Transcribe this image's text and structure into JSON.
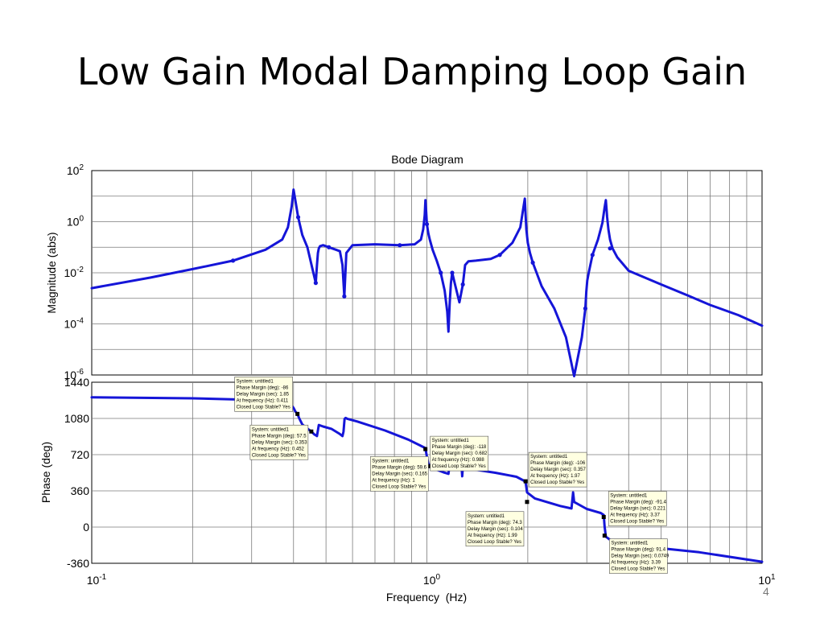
{
  "slide": {
    "title": "Low Gain Modal Damping Loop Gain",
    "page_number": "4"
  },
  "chart_data": {
    "type": "line",
    "title": "Bode Diagram",
    "xlabel": "Frequency  (Hz)",
    "x_scale": "log",
    "xlim": [
      0.1,
      10
    ],
    "x_ticks": [
      {
        "base": "10",
        "exp": "-1"
      },
      {
        "base": "10",
        "exp": "0"
      },
      {
        "base": "10",
        "exp": "1"
      }
    ],
    "grid": true,
    "line_color": "#1515d8",
    "marker_color": "#000000",
    "magnitude": {
      "ylabel": "Magnitude (abs)",
      "y_scale": "log",
      "ylim_exp": [
        -6,
        2
      ],
      "y_ticks": [
        {
          "base": "10",
          "exp": "2"
        },
        {
          "base": "10",
          "exp": "0"
        },
        {
          "base": "10",
          "exp": "-2"
        },
        {
          "base": "10",
          "exp": "-4"
        },
        {
          "base": "10",
          "exp": "-6"
        }
      ],
      "series": [
        {
          "x": [
            0.1,
            0.15,
            0.2,
            0.264,
            0.33,
            0.37,
            0.385,
            0.395,
            0.4,
            0.405,
            0.413,
            0.425,
            0.44,
            0.455,
            0.466,
            0.47,
            0.473,
            0.476,
            0.48,
            0.49,
            0.51,
            0.535,
            0.55,
            0.56,
            0.567,
            0.575,
            0.6,
            0.7,
            0.83,
            0.92,
            0.96,
            0.975,
            0.985,
            0.99,
            0.995,
            1.0,
            1.01,
            1.02,
            1.04,
            1.07,
            1.1,
            1.13,
            1.15,
            1.16,
            1.17,
            1.18,
            1.19,
            1.21,
            1.25,
            1.28,
            1.3,
            1.33,
            1.4,
            1.55,
            1.65,
            1.8,
            1.9,
            1.94,
            1.96,
            1.97,
            1.98,
            2.0,
            2.03,
            2.07,
            2.2,
            2.4,
            2.6,
            2.75,
            2.9,
            2.97,
            2.99,
            3.01,
            3.04,
            3.12,
            3.24,
            3.34,
            3.39,
            3.42,
            3.45,
            3.48,
            3.52,
            3.58,
            3.7,
            4.0,
            5.0,
            6.0,
            7.0,
            8.5,
            10.0
          ],
          "y": [
            0.0025,
            0.0065,
            0.014,
            0.03,
            0.08,
            0.2,
            0.6,
            4,
            18,
            7,
            1.5,
            0.3,
            0.1,
            0.015,
            0.004,
            0.02,
            0.06,
            0.09,
            0.11,
            0.12,
            0.1,
            0.08,
            0.07,
            0.02,
            0.0012,
            0.06,
            0.12,
            0.13,
            0.12,
            0.13,
            0.2,
            0.5,
            1.8,
            7,
            2.5,
            0.8,
            0.35,
            0.2,
            0.08,
            0.03,
            0.01,
            0.002,
            0.0003,
            5e-05,
            0.0007,
            0.004,
            0.01,
            0.004,
            0.0007,
            0.0035,
            0.02,
            0.028,
            0.03,
            0.035,
            0.05,
            0.15,
            0.6,
            3.5,
            8,
            2,
            0.5,
            0.15,
            0.06,
            0.025,
            0.003,
            0.0004,
            3e-05,
            9e-07,
            3e-05,
            0.0004,
            0.0018,
            0.005,
            0.01,
            0.05,
            0.2,
            0.9,
            3.5,
            7,
            1.5,
            0.5,
            0.2,
            0.09,
            0.04,
            0.012,
            0.0035,
            0.0013,
            0.00055,
            0.00022,
            8.5e-05
          ]
        }
      ],
      "markers": {
        "x": [
          0.264,
          0.413,
          0.466,
          0.51,
          0.567,
          0.83,
          1.0,
          1.1,
          1.19,
          1.28,
          1.65,
          2.07,
          2.97,
          3.12,
          3.52
        ],
        "y": [
          0.03,
          1.5,
          0.004,
          0.1,
          0.0012,
          0.12,
          0.8,
          0.01,
          0.01,
          0.0035,
          0.05,
          0.025,
          0.0004,
          0.05,
          0.09
        ]
      }
    },
    "phase": {
      "ylabel": "Phase (deg)",
      "ylim": [
        -360,
        1440
      ],
      "y_ticks": [
        -360,
        0,
        360,
        720,
        1080,
        1440
      ],
      "series": [
        {
          "x": [
            0.1,
            0.2,
            0.3,
            0.36,
            0.39,
            0.4,
            0.405,
            0.411,
            0.416,
            0.425,
            0.44,
            0.452,
            0.462,
            0.465,
            0.47,
            0.476,
            0.49,
            0.52,
            0.55,
            0.56,
            0.564,
            0.568,
            0.572,
            0.58,
            0.62,
            0.75,
            0.88,
            0.95,
            0.99,
            1.0,
            1.01,
            1.05,
            1.12,
            1.16,
            1.17,
            1.18,
            1.19,
            1.27,
            1.275,
            1.28,
            1.4,
            1.6,
            1.85,
            1.95,
            1.97,
            1.99,
            2.1,
            2.5,
            2.7,
            2.73,
            2.75,
            3.0,
            3.3,
            3.37,
            3.39,
            3.42,
            3.6,
            4.5,
            6.5,
            10.0
          ],
          "y": [
            1290,
            1280,
            1265,
            1245,
            1225,
            1185,
            1150,
            1125,
            1080,
            1020,
            980,
            950,
            920,
            915,
            905,
            1015,
            1000,
            975,
            925,
            905,
            950,
            1075,
            1085,
            1075,
            1050,
            960,
            870,
            815,
            785,
            700,
            630,
            580,
            545,
            530,
            635,
            640,
            630,
            590,
            505,
            600,
            570,
            540,
            500,
            460,
            450,
            345,
            285,
            210,
            185,
            345,
            250,
            180,
            140,
            120,
            10,
            -95,
            -150,
            -195,
            -250,
            -345
          ]
        }
      ],
      "markers": {
        "x": [
          0.411,
          0.452,
          0.99,
          1.01,
          1.97,
          1.99,
          3.37,
          3.39
        ],
        "y": [
          1125,
          950,
          775,
          605,
          455,
          250,
          100,
          -85
        ]
      }
    },
    "annotations": [
      {
        "anchor": 0,
        "lines": [
          "System: untitled1",
          "Phase Margin (deg): -86",
          "Delay Margin (sec): 1.85",
          "At frequency (Hz): 0.411",
          "Closed Loop Stable? Yes"
        ]
      },
      {
        "anchor": 1,
        "lines": [
          "System: untitled1",
          "Phase Margin (deg): 57.5",
          "Delay Margin (sec): 0.353",
          "At frequency (Hz): 0.452",
          "Closed Loop Stable? Yes"
        ]
      },
      {
        "anchor": 2,
        "lines": [
          "System: untitled1",
          "Phase Margin (deg): -118",
          "Delay Margin (sec): 0.682",
          "At frequency (Hz): 0.988",
          "Closed Loop Stable? Yes"
        ]
      },
      {
        "anchor": 3,
        "lines": [
          "System: untitled1",
          "Phase Margin (deg): 59.6",
          "Delay Margin (sec): 0.165",
          "At frequency (Hz): 1",
          "Closed Loop Stable? Yes"
        ]
      },
      {
        "anchor": 4,
        "lines": [
          "System: untitled1",
          "Phase Margin (deg): -106",
          "Delay Margin (sec): 0.357",
          "At frequency (Hz): 1.97",
          "Closed Loop Stable? Yes"
        ]
      },
      {
        "anchor": 5,
        "lines": [
          "System: untitled1",
          "Phase Margin (deg): 74.3",
          "Delay Margin (sec): 0.104",
          "At frequency (Hz): 1.99",
          "Closed Loop Stable? Yes"
        ]
      },
      {
        "anchor": 6,
        "lines": [
          "System: untitled1",
          "Phase Margin (deg): -91.4",
          "Delay Margin (sec): 0.221",
          "At frequency (Hz): 3.37",
          "Closed Loop Stable? Yes"
        ]
      },
      {
        "anchor": 7,
        "lines": [
          "System: untitled1",
          "Phase Margin (deg): 91.4",
          "Delay Margin (sec): 0.0749",
          "At frequency (Hz): 3.39",
          "Closed Loop Stable? Yes"
        ]
      }
    ]
  }
}
